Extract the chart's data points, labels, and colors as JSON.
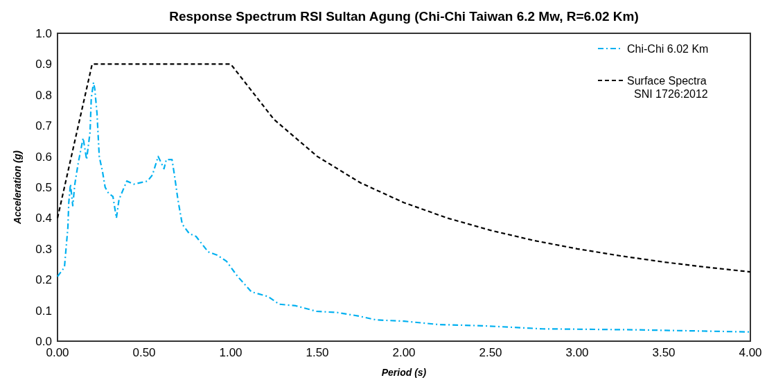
{
  "chart_data": {
    "type": "line",
    "title": "Response Spectrum RSI Sultan Agung (Chi-Chi Taiwan 6.2 Mw, R=6.02 Km)",
    "xlabel": "Period (s)",
    "ylabel": "Acceleration (g)",
    "xlim": [
      0,
      4
    ],
    "xticks": [
      {
        "value": 0,
        "label": "0.00"
      },
      {
        "value": 0.5,
        "label": "0.50"
      },
      {
        "value": 1,
        "label": "1.00"
      },
      {
        "value": 1.5,
        "label": "1.50"
      },
      {
        "value": 2,
        "label": "2.00"
      },
      {
        "value": 2.5,
        "label": "2.50"
      },
      {
        "value": 3,
        "label": "3.00"
      },
      {
        "value": 3.5,
        "label": "3.50"
      },
      {
        "value": 4,
        "label": "4.00"
      }
    ],
    "ylim": [
      0,
      1
    ],
    "yticks": [
      {
        "value": 0,
        "label": "0.0"
      },
      {
        "value": 0.1,
        "label": "0.1"
      },
      {
        "value": 0.2,
        "label": "0.2"
      },
      {
        "value": 0.3,
        "label": "0.3"
      },
      {
        "value": 0.4,
        "label": "0.4"
      },
      {
        "value": 0.5,
        "label": "0.5"
      },
      {
        "value": 0.6,
        "label": "0.6"
      },
      {
        "value": 0.7,
        "label": "0.7"
      },
      {
        "value": 0.8,
        "label": "0.8"
      },
      {
        "value": 0.9,
        "label": "0.9"
      },
      {
        "value": 1,
        "label": "1.0"
      }
    ],
    "grid": false,
    "legend": "top right",
    "marker": "none",
    "series": [
      {
        "name": "Chi-Chi 6.02 Km",
        "color": "#00b0f0",
        "line_style": "dashdot",
        "x": [
          0,
          0.04,
          0.06,
          0.065,
          0.075,
          0.088,
          0.1,
          0.12,
          0.148,
          0.168,
          0.188,
          0.195,
          0.208,
          0.215,
          0.228,
          0.241,
          0.26,
          0.275,
          0.295,
          0.32,
          0.34,
          0.355,
          0.4,
          0.44,
          0.52,
          0.548,
          0.581,
          0.615,
          0.628,
          0.661,
          0.675,
          0.695,
          0.72,
          0.76,
          0.8,
          0.87,
          0.92,
          0.975,
          1.04,
          1.12,
          1.215,
          1.28,
          1.375,
          1.495,
          1.615,
          1.735,
          1.84,
          2.0,
          2.2,
          2.455,
          2.8,
          3.33,
          3.99,
          4.0
        ],
        "values": [
          0.21,
          0.24,
          0.37,
          0.45,
          0.51,
          0.44,
          0.51,
          0.58,
          0.66,
          0.59,
          0.68,
          0.79,
          0.84,
          0.82,
          0.74,
          0.6,
          0.55,
          0.5,
          0.48,
          0.47,
          0.4,
          0.46,
          0.52,
          0.51,
          0.52,
          0.54,
          0.6,
          0.56,
          0.59,
          0.59,
          0.54,
          0.46,
          0.38,
          0.35,
          0.34,
          0.29,
          0.28,
          0.26,
          0.21,
          0.16,
          0.145,
          0.12,
          0.115,
          0.097,
          0.093,
          0.082,
          0.069,
          0.065,
          0.054,
          0.05,
          0.04,
          0.037,
          0.03,
          0.03
        ]
      },
      {
        "name": "Surface Spectra SNI 1726:2012",
        "color": "#000000",
        "line_style": "dashed",
        "x": [
          0,
          0.2,
          1.0,
          1.25,
          1.5,
          1.75,
          2.0,
          2.25,
          2.5,
          2.75,
          3.0,
          3.25,
          3.5,
          3.75,
          4.0
        ],
        "values": [
          0.4,
          0.9,
          0.9,
          0.72,
          0.6,
          0.514,
          0.45,
          0.4,
          0.36,
          0.327,
          0.3,
          0.277,
          0.257,
          0.24,
          0.225
        ]
      }
    ]
  }
}
